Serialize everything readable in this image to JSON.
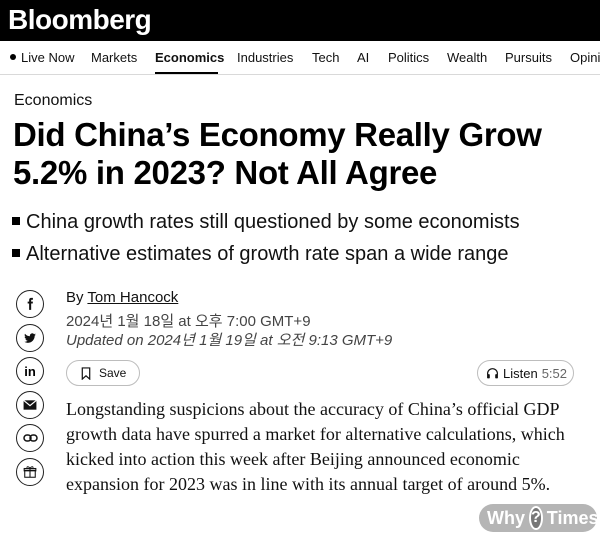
{
  "brand": {
    "logo_text": "Bloomberg"
  },
  "nav": {
    "live_label": "Live Now",
    "items": [
      {
        "label": "Markets"
      },
      {
        "label": "Economics",
        "active": true
      },
      {
        "label": "Industries"
      },
      {
        "label": "Tech"
      },
      {
        "label": "AI"
      },
      {
        "label": "Politics"
      },
      {
        "label": "Wealth"
      },
      {
        "label": "Pursuits"
      },
      {
        "label": "Opinion"
      }
    ]
  },
  "article": {
    "section": "Economics",
    "headline": "Did China’s Economy Really Grow 5.2% in 2023? Not All Agree",
    "bullets": [
      "China growth rates still questioned by some economists",
      "Alternative estimates of growth rate span a wide range"
    ],
    "byline_prefix": "By",
    "author": "Tom Hancock",
    "published": "2024년 1월 18일 at 오후 7:00 GMT+9",
    "updated": "Updated on 2024년 1월 19일 at 오전 9:13 GMT+9",
    "save_label": "Save",
    "listen_label": "Listen",
    "listen_duration": "5:52",
    "body": "Longstanding suspicions about the accuracy of China’s official GDP growth data have spurred a market for alternative calculations, which kicked into action this week after Beijing announced economic expansion for 2023 was in line with its annual target of around 5%."
  },
  "share": {
    "icons": [
      "facebook-icon",
      "twitter-icon",
      "linkedin-icon",
      "email-icon",
      "link-icon",
      "gift-icon"
    ]
  },
  "watermark": {
    "left": "Why",
    "mark": "?",
    "right": "Times"
  }
}
